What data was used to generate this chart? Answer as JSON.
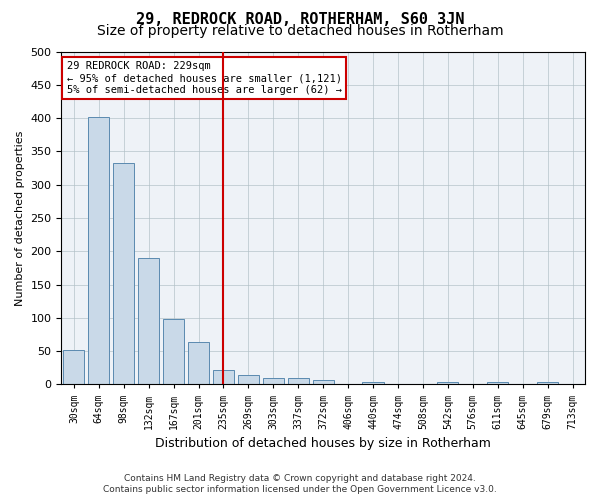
{
  "title": "29, REDROCK ROAD, ROTHERHAM, S60 3JN",
  "subtitle": "Size of property relative to detached houses in Rotherham",
  "xlabel": "Distribution of detached houses by size in Rotherham",
  "ylabel": "Number of detached properties",
  "footer_line1": "Contains HM Land Registry data © Crown copyright and database right 2024.",
  "footer_line2": "Contains public sector information licensed under the Open Government Licence v3.0.",
  "categories": [
    "30sqm",
    "64sqm",
    "98sqm",
    "132sqm",
    "167sqm",
    "201sqm",
    "235sqm",
    "269sqm",
    "303sqm",
    "337sqm",
    "372sqm",
    "406sqm",
    "440sqm",
    "474sqm",
    "508sqm",
    "542sqm",
    "576sqm",
    "611sqm",
    "645sqm",
    "679sqm",
    "713sqm"
  ],
  "values": [
    52,
    401,
    332,
    190,
    98,
    63,
    22,
    14,
    10,
    10,
    6,
    0,
    4,
    0,
    0,
    4,
    0,
    3,
    0,
    3,
    0
  ],
  "bar_color": "#c9d9e8",
  "bar_edge_color": "#5a8ab0",
  "red_line_index": 6,
  "annotation_line1": "29 REDROCK ROAD: 229sqm",
  "annotation_line2": "← 95% of detached houses are smaller (1,121)",
  "annotation_line3": "5% of semi-detached houses are larger (62) →",
  "annotation_box_color": "#ffffff",
  "annotation_box_edge_color": "#cc0000",
  "ylim": [
    0,
    500
  ],
  "yticks": [
    0,
    50,
    100,
    150,
    200,
    250,
    300,
    350,
    400,
    450,
    500
  ],
  "grid_color": "#b0bec5",
  "background_color": "#eef2f7",
  "title_fontsize": 11,
  "subtitle_fontsize": 10
}
